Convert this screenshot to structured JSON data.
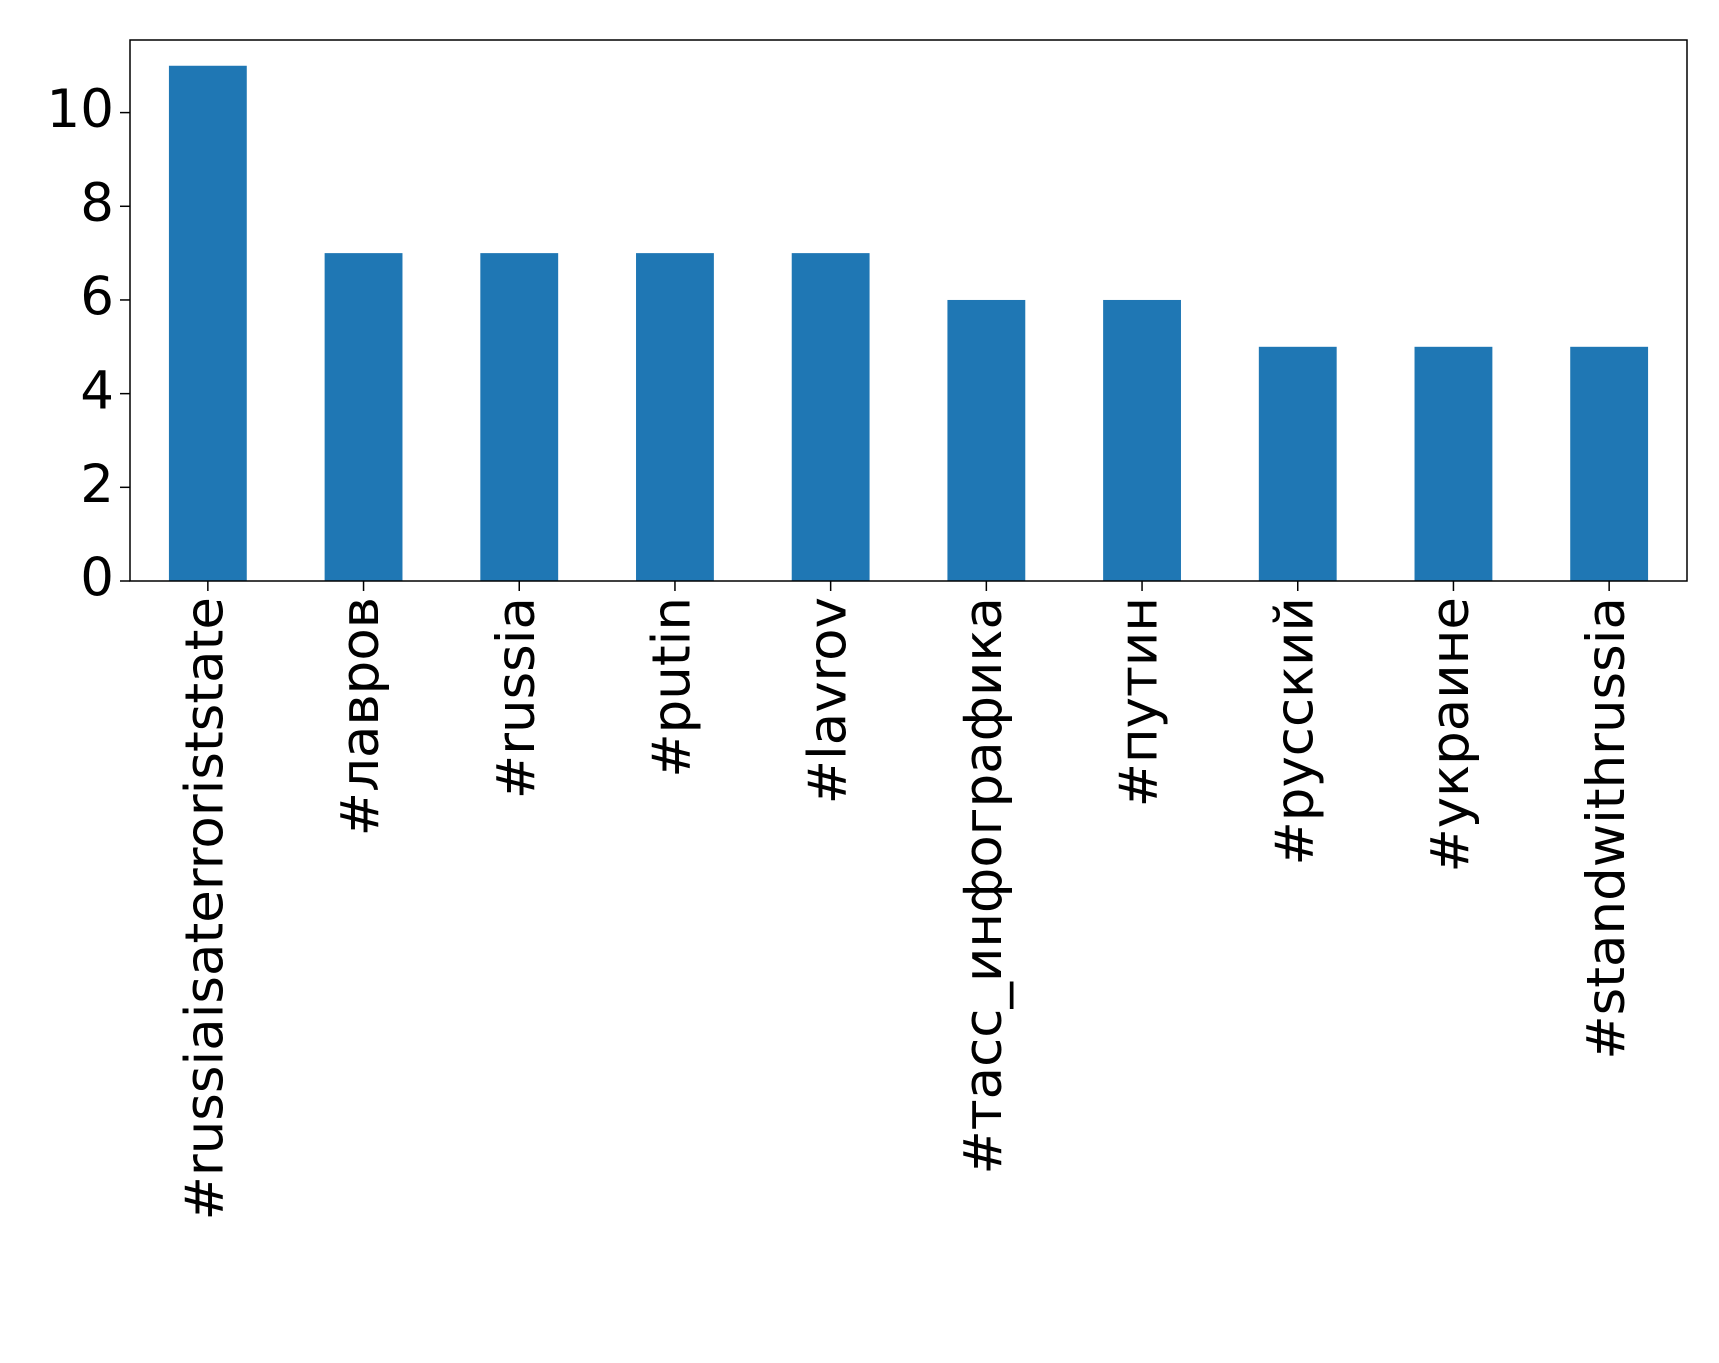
{
  "chart_data": {
    "type": "bar",
    "categories": [
      "#russiaisaterroriststate",
      "#лавров",
      "#russia",
      "#putin",
      "#lavrov",
      "#тасс_инфографика",
      "#путин",
      "#русский",
      "#украине",
      "#standwithrussia"
    ],
    "values": [
      11,
      7,
      7,
      7,
      7,
      6,
      6,
      5,
      5,
      5
    ],
    "color": "#1f77b4",
    "ylim": [
      0,
      11.55
    ],
    "yticks": [
      0,
      2,
      4,
      6,
      8,
      10
    ],
    "grid": false
  }
}
